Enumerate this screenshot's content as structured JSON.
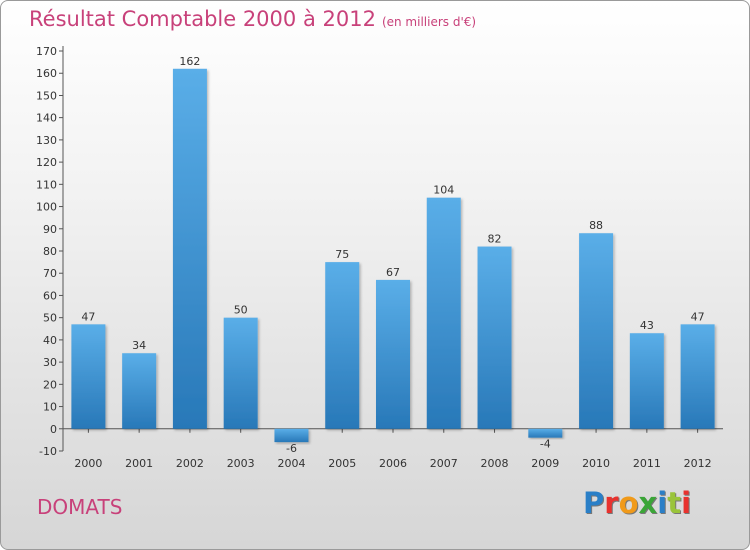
{
  "title": {
    "main": "Résultat Comptable 2000 à 2012",
    "unit": "(en milliers d'€)"
  },
  "city": "DOMATS",
  "brand": {
    "text": "Proxiti",
    "letter_colors": [
      "#2a7fc7",
      "#e8322e",
      "#f09a1a",
      "#3aa537",
      "#2a7fc7",
      "#9ac43a",
      "#e8322e"
    ]
  },
  "chart_data": {
    "type": "bar",
    "title": "Résultat Comptable 2000 à 2012",
    "subtitle": "(en milliers d'€)",
    "xlabel": "",
    "ylabel": "",
    "categories": [
      "2000",
      "2001",
      "2002",
      "2003",
      "2004",
      "2005",
      "2006",
      "2007",
      "2008",
      "2009",
      "2010",
      "2011",
      "2012"
    ],
    "values": [
      47,
      34,
      162,
      50,
      -6,
      75,
      67,
      104,
      82,
      -4,
      88,
      43,
      47
    ],
    "ylim": [
      -10,
      170
    ],
    "yticks": [
      -10,
      0,
      10,
      20,
      30,
      40,
      50,
      60,
      70,
      80,
      90,
      100,
      110,
      120,
      130,
      140,
      150,
      160,
      170
    ],
    "grid": false,
    "legend": "none",
    "bar_color_light": "#5aaee8",
    "bar_color_dark": "#2878b8"
  }
}
